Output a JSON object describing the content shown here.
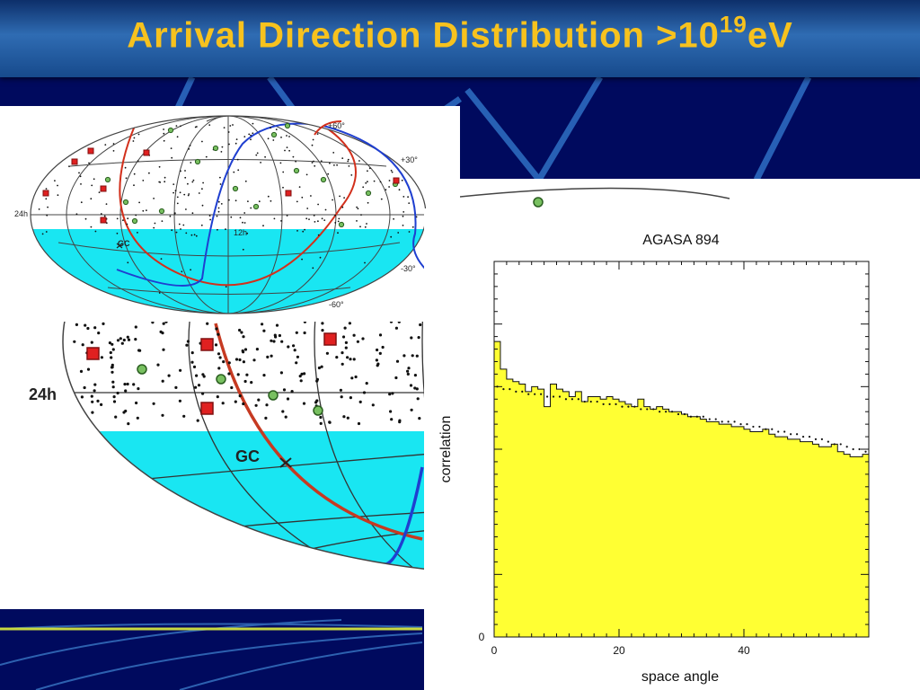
{
  "slide": {
    "title_main": "Arrival Direction Distribution >10",
    "title_exp": "19",
    "title_unit": "eV",
    "colors": {
      "title": "#f7c21e",
      "background": "#000a5e",
      "southern_sky": "#19e6f2",
      "bar_fill": "#ffff33",
      "red_curve": "#d2301c",
      "blue_curve": "#1f3fd0"
    }
  },
  "skymap_small": {
    "labels": [
      "+60°",
      "+30°",
      "24h",
      "12h",
      "GC",
      "-30°",
      "-60°"
    ]
  },
  "skymap_zoom": {
    "labels": [
      "24h",
      "GC"
    ]
  },
  "chart_data": {
    "type": "bar",
    "title": "AGASA 894",
    "xlabel": "space angle",
    "ylabel": "correlation",
    "xlim": [
      0,
      60
    ],
    "xticks": [
      "0",
      "20",
      "40"
    ],
    "ytick_zero": "0",
    "bin_width": 1,
    "values": [
      1.18,
      1.07,
      1.03,
      1.02,
      1.01,
      0.98,
      1.0,
      0.99,
      0.92,
      1.01,
      0.99,
      0.98,
      0.96,
      0.98,
      0.94,
      0.96,
      0.96,
      0.95,
      0.96,
      0.95,
      0.94,
      0.93,
      0.92,
      0.95,
      0.92,
      0.91,
      0.92,
      0.91,
      0.9,
      0.9,
      0.89,
      0.88,
      0.88,
      0.87,
      0.86,
      0.86,
      0.85,
      0.85,
      0.84,
      0.84,
      0.83,
      0.82,
      0.82,
      0.83,
      0.81,
      0.8,
      0.8,
      0.79,
      0.79,
      0.78,
      0.78,
      0.77,
      0.76,
      0.76,
      0.77,
      0.74,
      0.73,
      0.72,
      0.72,
      0.73
    ],
    "expected": [
      1.0,
      0.99,
      0.99,
      0.98,
      0.98,
      0.97,
      0.97,
      0.97,
      0.96,
      0.96,
      0.96,
      0.95,
      0.95,
      0.95,
      0.94,
      0.94,
      0.94,
      0.93,
      0.93,
      0.93,
      0.92,
      0.92,
      0.92,
      0.91,
      0.91,
      0.91,
      0.9,
      0.9,
      0.9,
      0.89,
      0.89,
      0.88,
      0.88,
      0.88,
      0.87,
      0.87,
      0.86,
      0.86,
      0.86,
      0.85,
      0.85,
      0.84,
      0.84,
      0.83,
      0.83,
      0.82,
      0.82,
      0.81,
      0.81,
      0.8,
      0.8,
      0.79,
      0.79,
      0.78,
      0.77,
      0.77,
      0.76,
      0.75,
      0.75,
      0.74
    ],
    "ylim": [
      0,
      1.5
    ]
  }
}
